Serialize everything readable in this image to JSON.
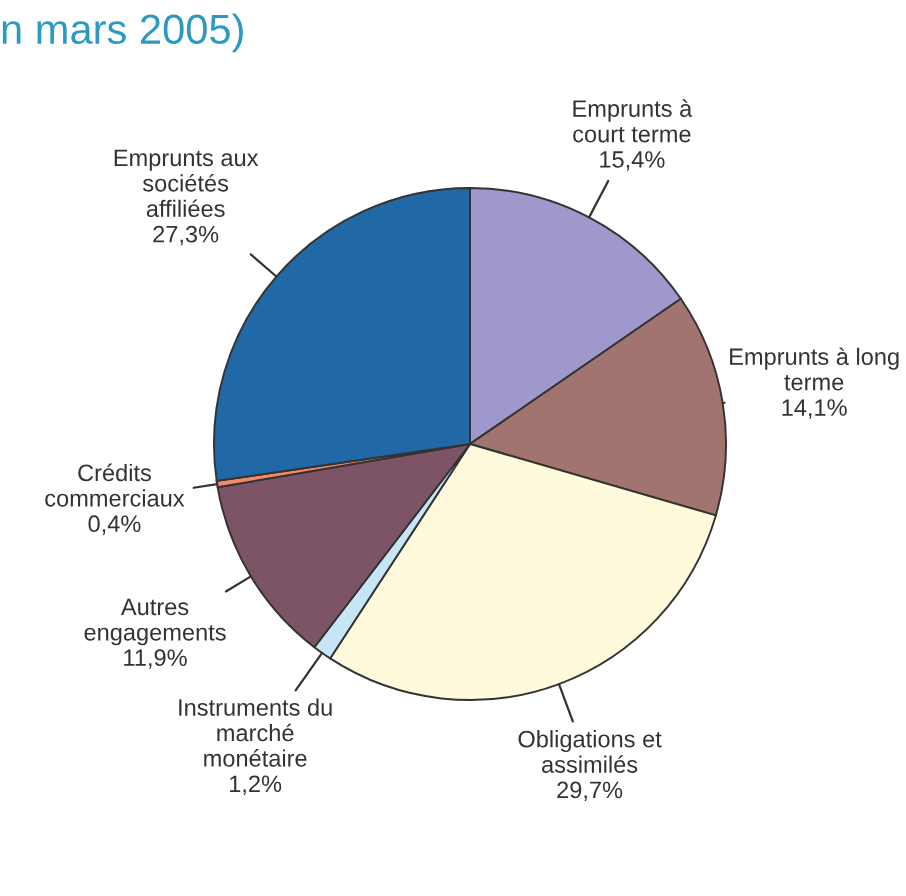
{
  "chart_data": {
    "type": "pie",
    "title": "n mars 2005)",
    "categories": [
      "Emprunts à\ncourt terme",
      "Emprunts à long\nterme",
      "Obligations et\nassimilés",
      "Instruments du\nmarché\nmonétaire",
      "Autres\nengagements",
      "Crédits\ncommerciaux",
      "Emprunts aux\nsociétés\naffiliées"
    ],
    "values": [
      15.4,
      14.1,
      29.7,
      1.2,
      11.9,
      0.4,
      27.3
    ],
    "colors": [
      "#9e98cc",
      "#a27470",
      "#fffadc",
      "#c6e6f6",
      "#7c5466",
      "#f28a66",
      "#2069a6"
    ],
    "value_labels": [
      "15,4%",
      "14,1%",
      "29,7%",
      "1,2%",
      "11,9%",
      "0,4%",
      "27,3%"
    ]
  }
}
